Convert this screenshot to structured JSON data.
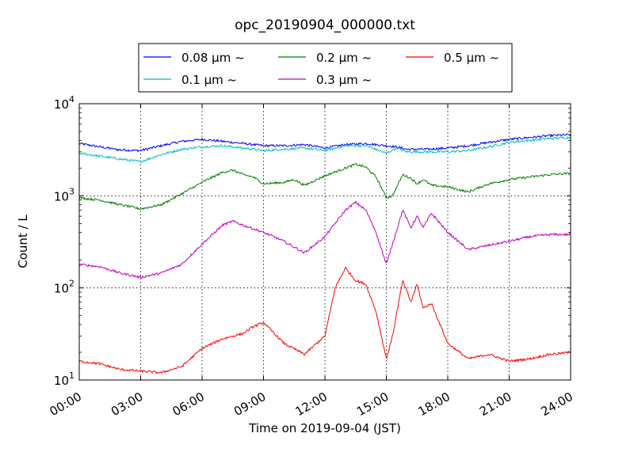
{
  "chart_data": {
    "type": "line",
    "title": "opc_20190904_000000.txt",
    "xlabel": "Time on 2019-09-04 (JST)",
    "ylabel": "Count / L",
    "x_unit": "hours",
    "xlim": [
      0,
      24
    ],
    "ylim": [
      10,
      10000
    ],
    "y_scale": "log",
    "x_ticks": [
      0,
      3,
      6,
      9,
      12,
      15,
      18,
      21,
      24
    ],
    "x_tick_labels": [
      "00:00",
      "03:00",
      "06:00",
      "09:00",
      "12:00",
      "15:00",
      "18:00",
      "21:00",
      "24:00"
    ],
    "y_ticks": [
      10,
      100,
      1000,
      10000
    ],
    "y_tick_labels": [
      {
        "base": "10",
        "exp": "1"
      },
      {
        "base": "10",
        "exp": "2"
      },
      {
        "base": "10",
        "exp": "3"
      },
      {
        "base": "10",
        "exp": "4"
      }
    ],
    "grid": true,
    "legend_position": "top",
    "series": [
      {
        "name": "0.08 μm ~",
        "color": "#0000ff",
        "points": [
          [
            0,
            3700
          ],
          [
            1,
            3400
          ],
          [
            2,
            3150
          ],
          [
            3,
            3100
          ],
          [
            4,
            3500
          ],
          [
            5,
            3900
          ],
          [
            6,
            4100
          ],
          [
            7,
            3900
          ],
          [
            8,
            3700
          ],
          [
            9,
            3500
          ],
          [
            10,
            3500
          ],
          [
            11,
            3600
          ],
          [
            12,
            3300
          ],
          [
            13,
            3600
          ],
          [
            14,
            3700
          ],
          [
            15,
            3500
          ],
          [
            15.5,
            3400
          ],
          [
            16,
            3200
          ],
          [
            17,
            3200
          ],
          [
            18,
            3300
          ],
          [
            19,
            3500
          ],
          [
            20,
            3800
          ],
          [
            21,
            4100
          ],
          [
            22,
            4300
          ],
          [
            23,
            4500
          ],
          [
            24,
            4600
          ]
        ]
      },
      {
        "name": "0.1 μm ~",
        "color": "#00bfbf",
        "points": [
          [
            0,
            2900
          ],
          [
            1,
            2700
          ],
          [
            2,
            2500
          ],
          [
            3,
            2350
          ],
          [
            4,
            2800
          ],
          [
            5,
            3200
          ],
          [
            6,
            3400
          ],
          [
            7,
            3500
          ],
          [
            8,
            3300
          ],
          [
            9,
            3100
          ],
          [
            10,
            3200
          ],
          [
            11,
            3300
          ],
          [
            12,
            3100
          ],
          [
            13,
            3500
          ],
          [
            14,
            3500
          ],
          [
            15,
            2900
          ],
          [
            15.5,
            3300
          ],
          [
            16,
            3000
          ],
          [
            17,
            3000
          ],
          [
            18,
            3000
          ],
          [
            19,
            3100
          ],
          [
            20,
            3400
          ],
          [
            21,
            3800
          ],
          [
            22,
            4000
          ],
          [
            23,
            4200
          ],
          [
            24,
            4300
          ]
        ]
      },
      {
        "name": "0.2 μm ~",
        "color": "#008000",
        "points": [
          [
            0,
            950
          ],
          [
            1,
            900
          ],
          [
            2,
            800
          ],
          [
            3,
            720
          ],
          [
            4,
            800
          ],
          [
            5,
            1050
          ],
          [
            6,
            1400
          ],
          [
            7,
            1800
          ],
          [
            7.5,
            1900
          ],
          [
            8,
            1700
          ],
          [
            8.5,
            1600
          ],
          [
            9,
            1350
          ],
          [
            10,
            1400
          ],
          [
            10.5,
            1500
          ],
          [
            11,
            1300
          ],
          [
            12,
            1650
          ],
          [
            13,
            2000
          ],
          [
            13.5,
            2200
          ],
          [
            14,
            2050
          ],
          [
            14.5,
            1600
          ],
          [
            15,
            950
          ],
          [
            15.3,
            1000
          ],
          [
            15.8,
            1700
          ],
          [
            16.2,
            1550
          ],
          [
            16.5,
            1350
          ],
          [
            16.8,
            1500
          ],
          [
            17.2,
            1300
          ],
          [
            18,
            1250
          ],
          [
            19,
            1100
          ],
          [
            20,
            1350
          ],
          [
            21,
            1500
          ],
          [
            22,
            1600
          ],
          [
            23,
            1700
          ],
          [
            24,
            1750
          ]
        ]
      },
      {
        "name": "0.3 μm ~",
        "color": "#bf00bf",
        "points": [
          [
            0,
            180
          ],
          [
            1,
            170
          ],
          [
            2,
            145
          ],
          [
            3,
            130
          ],
          [
            4,
            145
          ],
          [
            5,
            180
          ],
          [
            6,
            300
          ],
          [
            7,
            480
          ],
          [
            7.5,
            530
          ],
          [
            8,
            480
          ],
          [
            9,
            400
          ],
          [
            9.5,
            360
          ],
          [
            10,
            320
          ],
          [
            11,
            240
          ],
          [
            12,
            360
          ],
          [
            13,
            700
          ],
          [
            13.5,
            850
          ],
          [
            14,
            700
          ],
          [
            14.5,
            400
          ],
          [
            15,
            180
          ],
          [
            15.3,
            300
          ],
          [
            15.8,
            700
          ],
          [
            16.2,
            450
          ],
          [
            16.5,
            600
          ],
          [
            16.8,
            450
          ],
          [
            17.2,
            650
          ],
          [
            18,
            400
          ],
          [
            19,
            260
          ],
          [
            20,
            290
          ],
          [
            21,
            320
          ],
          [
            22,
            360
          ],
          [
            23,
            380
          ],
          [
            24,
            380
          ]
        ]
      },
      {
        "name": "0.5 μm ~",
        "color": "#ff0000",
        "points": [
          [
            0,
            16
          ],
          [
            1,
            15
          ],
          [
            2,
            13
          ],
          [
            3,
            12.5
          ],
          [
            4,
            12
          ],
          [
            5,
            14
          ],
          [
            6,
            22
          ],
          [
            7,
            28
          ],
          [
            8,
            32
          ],
          [
            8.5,
            38
          ],
          [
            9,
            42
          ],
          [
            10,
            25
          ],
          [
            11,
            19
          ],
          [
            12,
            30
          ],
          [
            12.5,
            100
          ],
          [
            13,
            165
          ],
          [
            13.5,
            120
          ],
          [
            14,
            110
          ],
          [
            14.5,
            55
          ],
          [
            15,
            17
          ],
          [
            15.3,
            30
          ],
          [
            15.8,
            120
          ],
          [
            16.2,
            70
          ],
          [
            16.5,
            110
          ],
          [
            16.8,
            60
          ],
          [
            17.2,
            68
          ],
          [
            18,
            25
          ],
          [
            19,
            17
          ],
          [
            20,
            19
          ],
          [
            21,
            16
          ],
          [
            22,
            17
          ],
          [
            23,
            19
          ],
          [
            24,
            20
          ]
        ]
      }
    ]
  }
}
